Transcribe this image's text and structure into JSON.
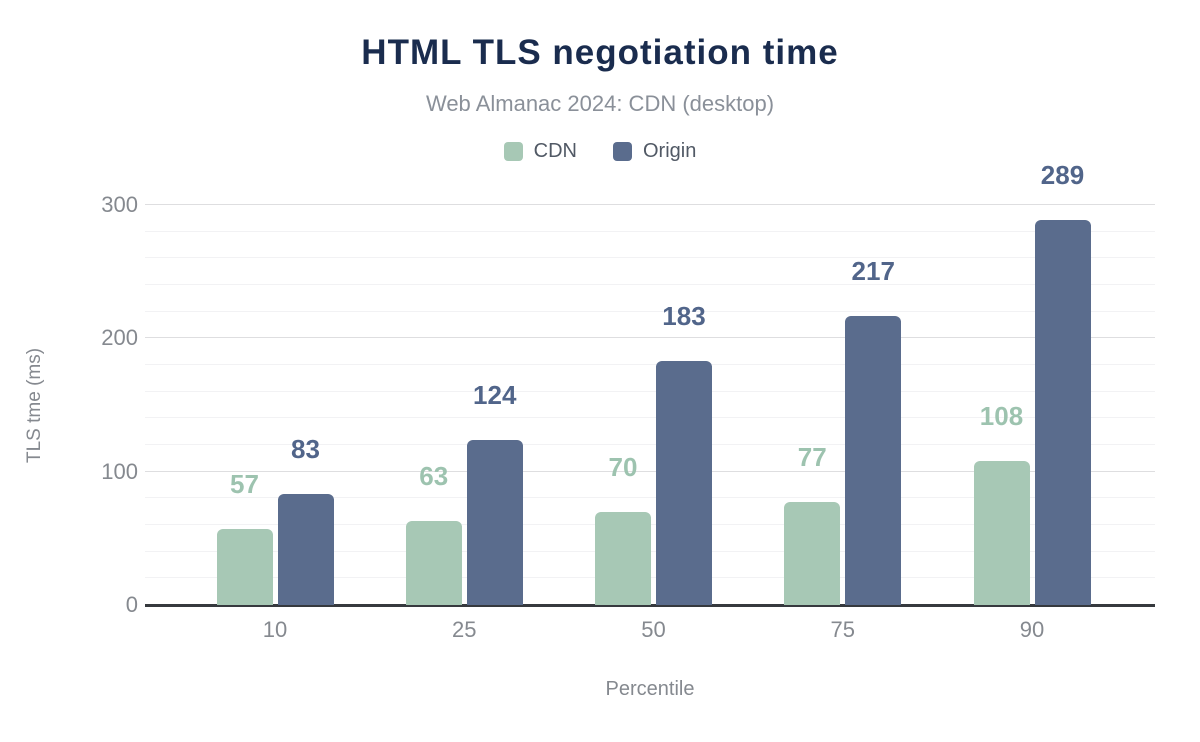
{
  "page": {
    "background": "#ffffff"
  },
  "chart_data": {
    "type": "bar",
    "title": "HTML TLS negotiation time",
    "subtitle": "Web Almanac 2024: CDN (desktop)",
    "xlabel": "Percentile",
    "ylabel": "TLS tme (ms)",
    "categories": [
      "10",
      "25",
      "50",
      "75",
      "90"
    ],
    "series": [
      {
        "name": "CDN",
        "color": "#a7c8b5",
        "label_color": "#9dc3af",
        "values": [
          57,
          63,
          70,
          77,
          108
        ]
      },
      {
        "name": "Origin",
        "color": "#5a6c8d",
        "label_color": "#51658a",
        "values": [
          83,
          124,
          183,
          217,
          289
        ]
      }
    ],
    "ylim": [
      0,
      300
    ],
    "yticks": [
      0,
      100,
      200,
      300
    ],
    "grid_minor_step": 20,
    "grid": true,
    "legend_position": "top",
    "value_labels": true
  },
  "colors": {
    "title": "#1a2c4e",
    "subtitle": "#8a9099",
    "legend_text": "#515965",
    "tick_text": "#85898f",
    "axis_title_text": "#85898f",
    "grid_major": "#dedee0",
    "grid_minor": "#f2f2f4",
    "axis_line": "#36393e"
  }
}
